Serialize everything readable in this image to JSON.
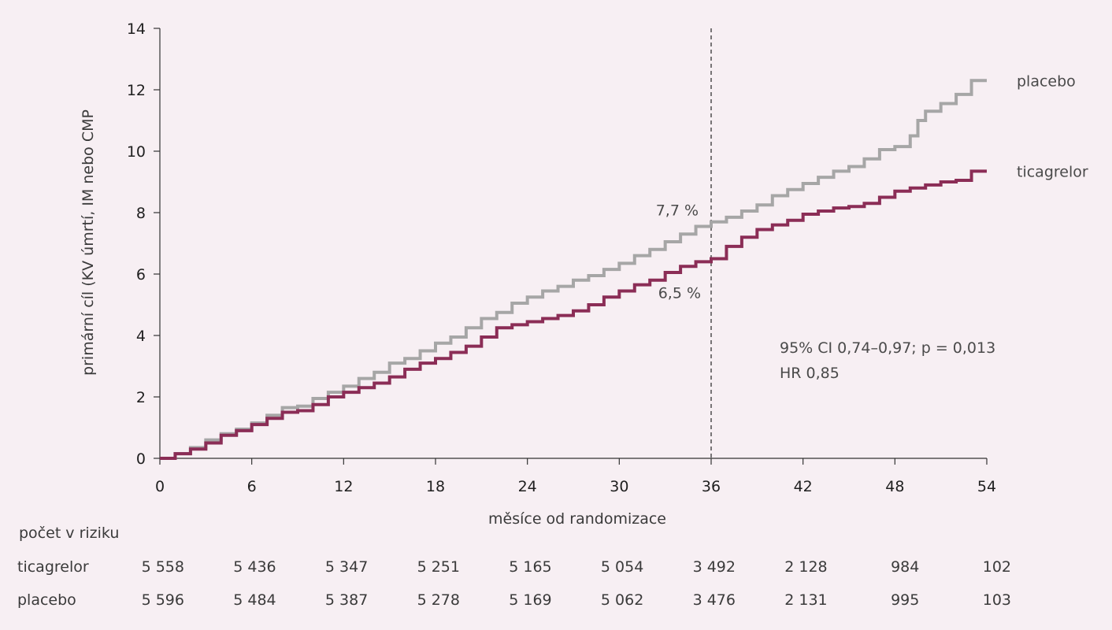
{
  "chart_data": {
    "type": "line",
    "xlabel": "měsíce od randomizace",
    "ylabel": "primární cíl (KV úmrtí, IM nebo CMP",
    "xlim": [
      0,
      54
    ],
    "ylim": [
      0,
      14
    ],
    "x_ticks": [
      0,
      6,
      12,
      18,
      24,
      30,
      36,
      42,
      48,
      54
    ],
    "y_ticks": [
      0,
      2,
      4,
      6,
      8,
      10,
      12,
      14
    ],
    "grid": false,
    "reference_line_x": 36,
    "series": [
      {
        "name": "placebo",
        "color": "#a6a6a6",
        "points": [
          [
            0,
            0
          ],
          [
            1,
            0.15
          ],
          [
            2,
            0.35
          ],
          [
            3,
            0.6
          ],
          [
            4,
            0.8
          ],
          [
            5,
            0.95
          ],
          [
            6,
            1.15
          ],
          [
            7,
            1.4
          ],
          [
            8,
            1.65
          ],
          [
            9,
            1.7
          ],
          [
            10,
            1.95
          ],
          [
            11,
            2.15
          ],
          [
            12,
            2.35
          ],
          [
            13,
            2.6
          ],
          [
            14,
            2.8
          ],
          [
            15,
            3.1
          ],
          [
            16,
            3.25
          ],
          [
            17,
            3.5
          ],
          [
            18,
            3.75
          ],
          [
            19,
            3.95
          ],
          [
            20,
            4.25
          ],
          [
            21,
            4.55
          ],
          [
            22,
            4.75
          ],
          [
            23,
            5.05
          ],
          [
            24,
            5.25
          ],
          [
            25,
            5.45
          ],
          [
            26,
            5.6
          ],
          [
            27,
            5.8
          ],
          [
            28,
            5.95
          ],
          [
            29,
            6.15
          ],
          [
            30,
            6.35
          ],
          [
            31,
            6.6
          ],
          [
            32,
            6.8
          ],
          [
            33,
            7.05
          ],
          [
            34,
            7.3
          ],
          [
            35,
            7.55
          ],
          [
            36,
            7.7
          ],
          [
            37,
            7.85
          ],
          [
            38,
            8.05
          ],
          [
            39,
            8.25
          ],
          [
            40,
            8.55
          ],
          [
            41,
            8.75
          ],
          [
            42,
            8.95
          ],
          [
            43,
            9.15
          ],
          [
            44,
            9.35
          ],
          [
            45,
            9.5
          ],
          [
            46,
            9.75
          ],
          [
            47,
            10.05
          ],
          [
            48,
            10.15
          ],
          [
            49,
            10.5
          ],
          [
            49.5,
            11.0
          ],
          [
            50,
            11.3
          ],
          [
            51,
            11.55
          ],
          [
            52,
            11.85
          ],
          [
            53,
            12.3
          ],
          [
            54,
            12.3
          ]
        ],
        "end_label": "placebo"
      },
      {
        "name": "ticagrelor",
        "color": "#8b2d56",
        "points": [
          [
            0,
            0
          ],
          [
            1,
            0.15
          ],
          [
            2,
            0.3
          ],
          [
            3,
            0.5
          ],
          [
            4,
            0.75
          ],
          [
            5,
            0.9
          ],
          [
            6,
            1.1
          ],
          [
            7,
            1.3
          ],
          [
            8,
            1.5
          ],
          [
            9,
            1.55
          ],
          [
            10,
            1.75
          ],
          [
            11,
            2.0
          ],
          [
            12,
            2.15
          ],
          [
            13,
            2.3
          ],
          [
            14,
            2.45
          ],
          [
            15,
            2.65
          ],
          [
            16,
            2.9
          ],
          [
            17,
            3.1
          ],
          [
            18,
            3.25
          ],
          [
            19,
            3.45
          ],
          [
            20,
            3.65
          ],
          [
            21,
            3.95
          ],
          [
            22,
            4.25
          ],
          [
            23,
            4.35
          ],
          [
            24,
            4.45
          ],
          [
            25,
            4.55
          ],
          [
            26,
            4.65
          ],
          [
            27,
            4.8
          ],
          [
            28,
            5.0
          ],
          [
            29,
            5.25
          ],
          [
            30,
            5.45
          ],
          [
            31,
            5.65
          ],
          [
            32,
            5.8
          ],
          [
            33,
            6.05
          ],
          [
            34,
            6.25
          ],
          [
            35,
            6.4
          ],
          [
            36,
            6.5
          ],
          [
            37,
            6.9
          ],
          [
            38,
            7.2
          ],
          [
            39,
            7.45
          ],
          [
            40,
            7.6
          ],
          [
            41,
            7.75
          ],
          [
            42,
            7.95
          ],
          [
            43,
            8.05
          ],
          [
            44,
            8.15
          ],
          [
            45,
            8.2
          ],
          [
            46,
            8.3
          ],
          [
            47,
            8.5
          ],
          [
            48,
            8.7
          ],
          [
            49,
            8.8
          ],
          [
            50,
            8.9
          ],
          [
            51,
            9.0
          ],
          [
            52,
            9.05
          ],
          [
            53,
            9.35
          ],
          [
            54,
            9.35
          ]
        ],
        "end_label": "ticagrelor"
      }
    ],
    "annotations": [
      {
        "text": "7,7 %",
        "x": 36,
        "y": 7.7
      },
      {
        "text": "6,5 %",
        "x": 36,
        "y": 6.5
      }
    ],
    "stats_text": [
      "95% CI 0,74–0,97; p = 0,013",
      "HR 0,85"
    ],
    "risk_table": {
      "title": "počet v riziku",
      "rows": [
        {
          "label": "ticagrelor",
          "values": [
            "5 558",
            "5 436",
            "5 347",
            "5 251",
            "5 165",
            "5 054",
            "3 492",
            "2 128",
            "984",
            "102"
          ]
        },
        {
          "label": "placebo",
          "values": [
            "5 596",
            "5 484",
            "5 387",
            "5 278",
            "5 169",
            "5 062",
            "3 476",
            "2 131",
            "995",
            "103"
          ]
        }
      ]
    }
  }
}
